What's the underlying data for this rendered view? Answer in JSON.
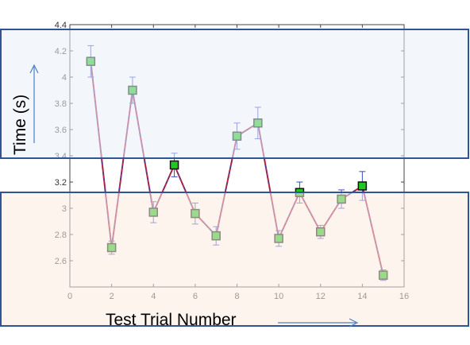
{
  "chart_data": {
    "type": "line",
    "title": "",
    "xlabel": "Test Trial Number",
    "ylabel": "Time (s)",
    "xlim": [
      0,
      16
    ],
    "ylim": [
      2.4,
      4.4
    ],
    "x_ticks": [
      0,
      2,
      4,
      6,
      8,
      10,
      12,
      14,
      16
    ],
    "y_ticks": [
      2.6,
      2.8,
      3,
      3.2,
      3.4,
      3.6,
      3.8,
      4,
      4.2,
      4.4
    ],
    "y_tick_labels": [
      "2.6",
      "2.8",
      "3",
      "3.2",
      "3.4",
      "3.6",
      "3.8",
      "4",
      "4.2",
      "4.4"
    ],
    "grid": false,
    "series": [
      {
        "x": [
          1,
          2,
          3,
          4,
          5,
          6,
          7,
          8,
          9,
          10,
          11,
          12,
          13,
          14,
          15
        ],
        "values": [
          4.12,
          2.7,
          3.9,
          2.97,
          3.33,
          2.96,
          2.79,
          3.55,
          3.65,
          2.77,
          3.12,
          2.82,
          3.07,
          3.17,
          2.49
        ],
        "error": [
          0.12,
          0.05,
          0.1,
          0.08,
          0.09,
          0.08,
          0.07,
          0.1,
          0.12,
          0.06,
          0.08,
          0.05,
          0.07,
          0.11,
          0.04
        ]
      }
    ],
    "colors": {
      "line": "#c8203c",
      "line_dash": "#3a3aa0",
      "marker_fill": "#22c822",
      "marker_edge": "#111111",
      "errorbar": "#3b4bbf",
      "upper_band": "#eaf0f8",
      "lower_band": "#fbebe0",
      "band_border": "#2f5597",
      "axis": "#444444"
    }
  }
}
